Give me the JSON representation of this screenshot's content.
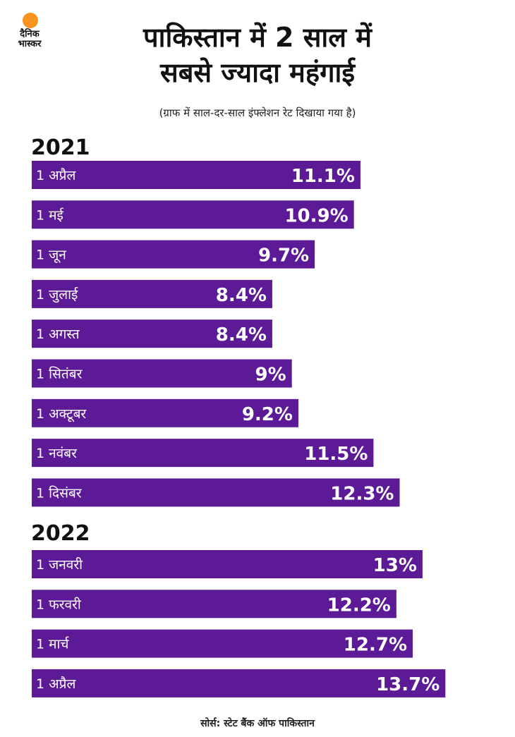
{
  "logo": {
    "line1": "दैनिक",
    "line2": "भास्कर",
    "color": "#f7931e"
  },
  "title_line1": "पाकिस्तान में 2 साल में",
  "title_line2": "सबसे ज्यादा महंगाई",
  "subtitle": "(ग्राफ में साल-दर-साल इंफ्लेशन रेट दिखाया गया है)",
  "source": "सोर्स: स्टेट बैंक ऑफ पाकिस्तान",
  "colors": {
    "bar": "#5c1a96",
    "bar_text": "#ffffff"
  },
  "chart_data": {
    "type": "bar",
    "orientation": "horizontal",
    "unit": "%",
    "groups": [
      {
        "year": "2021",
        "categories": [
          "1 अप्रैल",
          "1 मई",
          "1 जून",
          "1 जुलाई",
          "1 अगस्त",
          "1 सितंबर",
          "1 अक्टूबर",
          "1 नवंबर",
          "1 दिसंबर"
        ],
        "values": [
          11.1,
          10.9,
          9.7,
          8.4,
          8.4,
          9,
          9.2,
          11.5,
          12.3
        ],
        "labels": [
          "11.1%",
          "10.9%",
          "9.7%",
          "8.4%",
          "8.4%",
          "9%",
          "9.2%",
          "11.5%",
          "12.3%"
        ]
      },
      {
        "year": "2022",
        "categories": [
          "1 जनवरी",
          "1 फरवरी",
          "1 मार्च",
          "1 अप्रैल"
        ],
        "values": [
          13,
          12.2,
          12.7,
          13.7
        ],
        "labels": [
          "13%",
          "12.2%",
          "12.7%",
          "13.7%"
        ]
      }
    ]
  }
}
